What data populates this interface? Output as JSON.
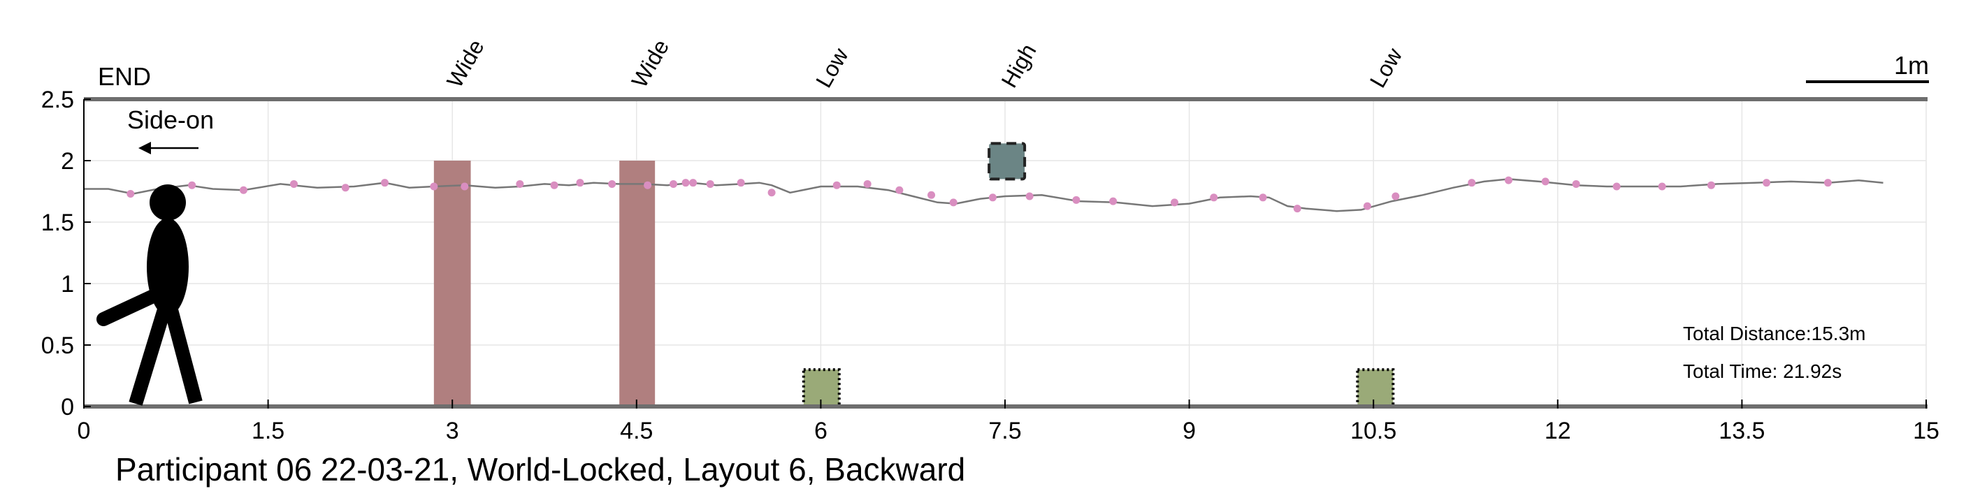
{
  "chart_data": {
    "type": "line",
    "caption": "Participant 06 22-03-21, World-Locked, Layout 6, Backward",
    "start_label": "END",
    "direction_label": "Side-on",
    "scale_label": "1m",
    "info": {
      "distance": "Total Distance:15.3m",
      "time": "Total Time: 21.92s"
    },
    "xlim": [
      0,
      15
    ],
    "ylim": [
      0,
      2.5
    ],
    "xticks": [
      0,
      1.5,
      3,
      4.5,
      6,
      7.5,
      9,
      10.5,
      12,
      13.5,
      15
    ],
    "xtick_labels": [
      "0",
      "1.5",
      "3",
      "4.5",
      "6",
      "7.5",
      "9",
      "10.5",
      "12",
      "13.5",
      "15"
    ],
    "yticks": [
      0,
      0.5,
      1,
      1.5,
      2,
      2.5
    ],
    "ytick_labels": [
      "0",
      "0.5",
      "1",
      "1.5",
      "2",
      "2.5"
    ],
    "obstacles": [
      {
        "label": "Wide",
        "kind": "pillar",
        "x0": 2.85,
        "x1": 3.15,
        "y0": 0,
        "y1": 2.0,
        "color": "#b07f7f"
      },
      {
        "label": "Wide",
        "kind": "pillar",
        "x0": 4.36,
        "x1": 4.65,
        "y0": 0,
        "y1": 2.0,
        "color": "#b07f7f"
      },
      {
        "label": "Low",
        "kind": "low-box",
        "x0": 5.86,
        "x1": 6.15,
        "y0": 0,
        "y1": 0.3,
        "color": "#9aaa78"
      },
      {
        "label": "High",
        "kind": "high-box",
        "x0": 7.37,
        "x1": 7.66,
        "y0": 1.85,
        "y1": 2.14,
        "color": "#6b8585"
      },
      {
        "label": "Low",
        "kind": "low-box",
        "x0": 10.37,
        "x1": 10.66,
        "y0": 0,
        "y1": 0.3,
        "color": "#9aaa78"
      }
    ],
    "head_height_series": {
      "color": "#777777",
      "x": [
        0,
        0.2,
        0.4,
        0.6,
        0.85,
        1.05,
        1.3,
        1.6,
        1.9,
        2.2,
        2.45,
        2.65,
        2.85,
        3.1,
        3.35,
        3.55,
        3.75,
        3.95,
        4.15,
        4.35,
        4.55,
        4.75,
        4.95,
        5.15,
        5.35,
        5.5,
        5.6,
        5.75,
        6.0,
        6.3,
        6.55,
        6.75,
        6.95,
        7.1,
        7.3,
        7.5,
        7.8,
        8.1,
        8.4,
        8.7,
        9.0,
        9.25,
        9.5,
        9.65,
        9.8,
        9.95,
        10.2,
        10.4,
        10.65,
        10.9,
        11.15,
        11.4,
        11.6,
        11.85,
        12.15,
        12.4,
        12.7,
        13.0,
        13.3,
        13.6,
        13.9,
        14.2,
        14.45,
        14.65
      ],
      "y": [
        1.77,
        1.77,
        1.73,
        1.77,
        1.8,
        1.77,
        1.76,
        1.81,
        1.78,
        1.79,
        1.82,
        1.78,
        1.79,
        1.8,
        1.78,
        1.79,
        1.81,
        1.8,
        1.82,
        1.81,
        1.81,
        1.8,
        1.82,
        1.8,
        1.81,
        1.82,
        1.8,
        1.74,
        1.79,
        1.79,
        1.76,
        1.71,
        1.66,
        1.65,
        1.69,
        1.71,
        1.72,
        1.67,
        1.66,
        1.63,
        1.65,
        1.7,
        1.71,
        1.7,
        1.63,
        1.61,
        1.59,
        1.6,
        1.67,
        1.72,
        1.78,
        1.83,
        1.85,
        1.83,
        1.8,
        1.79,
        1.79,
        1.79,
        1.81,
        1.82,
        1.83,
        1.82,
        1.84,
        1.82
      ]
    },
    "footstep_points": {
      "color": "#d98ec0",
      "x": [
        0.38,
        0.88,
        1.3,
        1.71,
        2.13,
        2.45,
        2.85,
        3.1,
        3.55,
        3.83,
        4.04,
        4.3,
        4.59,
        4.8,
        4.9,
        4.96,
        5.1,
        5.35,
        5.6,
        6.13,
        6.38,
        6.64,
        6.9,
        7.08,
        7.4,
        7.7,
        8.08,
        8.38,
        8.88,
        9.2,
        9.6,
        9.88,
        10.45,
        10.68,
        11.3,
        11.6,
        11.9,
        12.15,
        12.48,
        12.85,
        13.25,
        13.7,
        14.2
      ],
      "y": [
        1.73,
        1.8,
        1.76,
        1.81,
        1.78,
        1.82,
        1.79,
        1.79,
        1.81,
        1.8,
        1.82,
        1.81,
        1.8,
        1.81,
        1.82,
        1.82,
        1.81,
        1.82,
        1.74,
        1.8,
        1.81,
        1.76,
        1.72,
        1.66,
        1.7,
        1.71,
        1.68,
        1.67,
        1.66,
        1.7,
        1.7,
        1.61,
        1.63,
        1.71,
        1.82,
        1.84,
        1.83,
        1.81,
        1.79,
        1.79,
        1.8,
        1.82,
        1.82
      ]
    },
    "grid": true
  }
}
